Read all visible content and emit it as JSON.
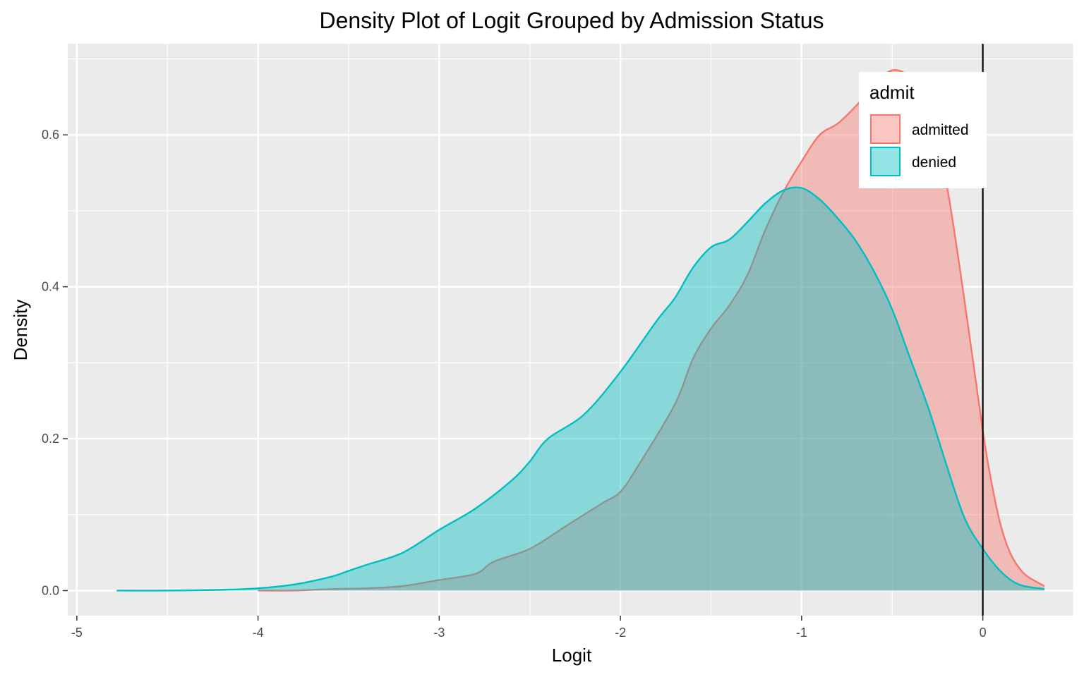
{
  "chart_data": {
    "type": "area",
    "title": "Density Plot of Logit Grouped by Admission Status",
    "xlabel": "Logit",
    "ylabel": "Density",
    "xlim": [
      -5.05,
      0.5
    ],
    "ylim": [
      -0.033,
      0.72
    ],
    "x_ticks": [
      -5,
      -4,
      -3,
      -2,
      -1,
      0
    ],
    "x_tick_labels": [
      "-5",
      "-4",
      "-3",
      "-2",
      "-1",
      "0"
    ],
    "y_ticks": [
      0.0,
      0.2,
      0.4,
      0.6
    ],
    "y_tick_labels": [
      "0.0",
      "0.2",
      "0.4",
      "0.6"
    ],
    "grid": true,
    "vline_x": 0,
    "legend": {
      "title": "admit",
      "position": "top-right"
    },
    "series": [
      {
        "name": "admitted",
        "color": "#F8766D",
        "fill": "#F8766D",
        "points": [
          [
            -4.0,
            0.0
          ],
          [
            -3.8,
            0.0
          ],
          [
            -3.6,
            0.002
          ],
          [
            -3.4,
            0.003
          ],
          [
            -3.2,
            0.006
          ],
          [
            -3.0,
            0.014
          ],
          [
            -2.8,
            0.022
          ],
          [
            -2.7,
            0.038
          ],
          [
            -2.5,
            0.055
          ],
          [
            -2.3,
            0.085
          ],
          [
            -2.1,
            0.115
          ],
          [
            -2.0,
            0.13
          ],
          [
            -1.9,
            0.165
          ],
          [
            -1.7,
            0.245
          ],
          [
            -1.6,
            0.305
          ],
          [
            -1.5,
            0.345
          ],
          [
            -1.4,
            0.375
          ],
          [
            -1.3,
            0.415
          ],
          [
            -1.2,
            0.475
          ],
          [
            -1.1,
            0.525
          ],
          [
            -1.0,
            0.565
          ],
          [
            -0.9,
            0.6
          ],
          [
            -0.8,
            0.615
          ],
          [
            -0.7,
            0.638
          ],
          [
            -0.6,
            0.665
          ],
          [
            -0.5,
            0.685
          ],
          [
            -0.4,
            0.675
          ],
          [
            -0.3,
            0.635
          ],
          [
            -0.2,
            0.535
          ],
          [
            -0.1,
            0.38
          ],
          [
            0.0,
            0.21
          ],
          [
            0.05,
            0.14
          ],
          [
            0.1,
            0.085
          ],
          [
            0.15,
            0.05
          ],
          [
            0.2,
            0.03
          ],
          [
            0.25,
            0.018
          ],
          [
            0.34,
            0.006
          ]
        ]
      },
      {
        "name": "denied",
        "color": "#00BFC4",
        "fill": "#00BFC4",
        "points": [
          [
            -4.78,
            0.0
          ],
          [
            -4.5,
            0.0
          ],
          [
            -4.2,
            0.001
          ],
          [
            -4.0,
            0.003
          ],
          [
            -3.8,
            0.008
          ],
          [
            -3.6,
            0.018
          ],
          [
            -3.5,
            0.026
          ],
          [
            -3.4,
            0.034
          ],
          [
            -3.2,
            0.05
          ],
          [
            -3.0,
            0.08
          ],
          [
            -2.8,
            0.108
          ],
          [
            -2.6,
            0.145
          ],
          [
            -2.5,
            0.17
          ],
          [
            -2.4,
            0.2
          ],
          [
            -2.2,
            0.232
          ],
          [
            -2.0,
            0.288
          ],
          [
            -1.8,
            0.355
          ],
          [
            -1.7,
            0.385
          ],
          [
            -1.6,
            0.425
          ],
          [
            -1.5,
            0.452
          ],
          [
            -1.4,
            0.462
          ],
          [
            -1.3,
            0.485
          ],
          [
            -1.2,
            0.51
          ],
          [
            -1.1,
            0.527
          ],
          [
            -1.0,
            0.53
          ],
          [
            -0.9,
            0.515
          ],
          [
            -0.8,
            0.49
          ],
          [
            -0.7,
            0.46
          ],
          [
            -0.6,
            0.42
          ],
          [
            -0.5,
            0.37
          ],
          [
            -0.4,
            0.305
          ],
          [
            -0.3,
            0.24
          ],
          [
            -0.2,
            0.165
          ],
          [
            -0.1,
            0.095
          ],
          [
            0.0,
            0.055
          ],
          [
            0.1,
            0.025
          ],
          [
            0.2,
            0.008
          ],
          [
            0.34,
            0.002
          ]
        ]
      }
    ]
  }
}
